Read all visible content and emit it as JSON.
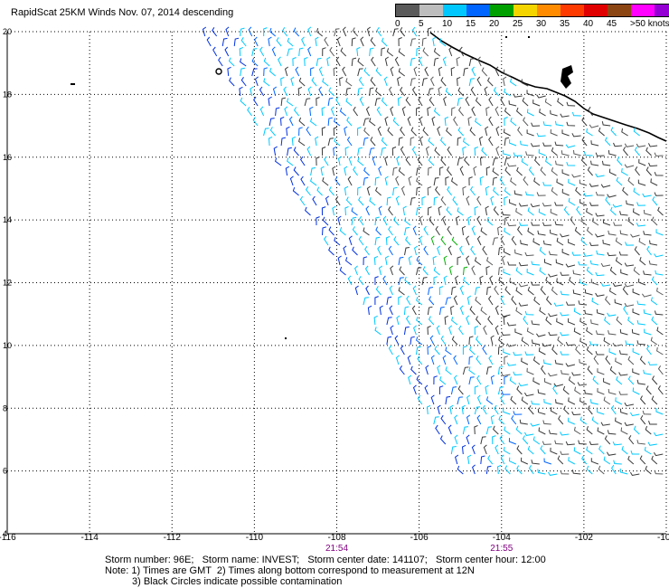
{
  "title": "RapidScat 25KM Winds Nov. 07, 2014 descending",
  "legend": {
    "colors": [
      "#5a5a5a",
      "#bdbdbd",
      "#00c8ff",
      "#0064ff",
      "#00a000",
      "#f5d500",
      "#ff8c00",
      "#ff3a00",
      "#e00000",
      "#8b4513",
      "#ff00ff",
      "#9400d3",
      "#5000a0"
    ],
    "labels": [
      "0",
      "5",
      "10",
      "15",
      "20",
      "25",
      "30",
      "35",
      "40",
      "45",
      ">50 knots"
    ]
  },
  "map": {
    "lon_ticks": [
      "-116",
      "-114",
      "-112",
      "-110",
      "-108",
      "-106",
      "-104",
      "-102",
      "-100"
    ],
    "lat_ticks": [
      "4",
      "6",
      "8",
      "10",
      "12",
      "14",
      "16",
      "18",
      "20"
    ],
    "lon_range": [
      -116,
      -100
    ],
    "lat_range": [
      4,
      20
    ],
    "time_labels": [
      {
        "text": "21:54",
        "lon": -108
      },
      {
        "text": "21:55",
        "lon": -104
      }
    ],
    "time_color": "#800080"
  },
  "footer": {
    "line1": "Storm number: 96E;   Storm name: INVEST;   Storm center date: 141107;   Storm center hour: 12:00",
    "line2": "Note: 1) Times are GMT  2) Times along bottom correspond to measurement at 12N",
    "line3": "3) Black Circles indicate possible contamination"
  }
}
